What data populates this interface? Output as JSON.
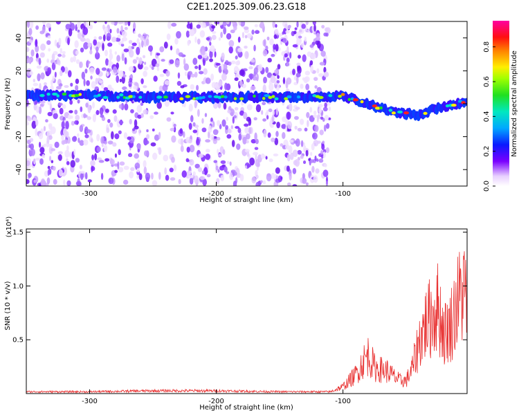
{
  "title": "C2E1.2025.309.06.23.G18",
  "chart_data": [
    {
      "type": "heatmap",
      "xlabel": "Height of straight line (km)",
      "ylabel": "Frequency (Hz)",
      "xlim": [
        -350,
        -2
      ],
      "ylim": [
        -50,
        50
      ],
      "x_ticks": [
        -300,
        -200,
        -100
      ],
      "y_ticks": [
        -40,
        -20,
        0,
        20,
        40
      ],
      "colorbar": {
        "label": "Normalized spectral amplitude",
        "range": [
          0,
          0.95
        ],
        "ticks": [
          "0.0",
          "0.2",
          "0.4",
          "0.6",
          "0.8"
        ],
        "colormap": "rainbow (white-purple-blue-cyan-green-yellow-red-magenta)"
      },
      "carrier_trace": {
        "x": [
          -350,
          -300,
          -250,
          -200,
          -150,
          -110,
          -100,
          -90,
          -80,
          -70,
          -60,
          -50,
          -40,
          -30,
          -20,
          -10,
          -2
        ],
        "y": [
          5,
          5,
          4,
          4,
          4,
          4,
          5,
          2,
          0,
          -3,
          -5,
          -6,
          -7,
          -4,
          -2,
          0,
          2
        ]
      },
      "noise_region_end_x": -110
    },
    {
      "type": "line",
      "xlabel": "Height of straight line (km)",
      "ylabel": "SNR (10 * v/v)",
      "scale_note": "(x10⁴)",
      "xlim": [
        -350,
        -2
      ],
      "ylim": [
        0,
        1.53
      ],
      "x_ticks": [
        -300,
        -200,
        -100
      ],
      "y_ticks": [
        "0.5",
        "1.0",
        "1.5"
      ],
      "series": [
        {
          "color": "#e83030",
          "x": [
            -350,
            -300,
            -250,
            -200,
            -150,
            -110,
            -100,
            -90,
            -85,
            -80,
            -75,
            -70,
            -65,
            -60,
            -55,
            -50,
            -45,
            -40,
            -35,
            -30,
            -25,
            -20,
            -15,
            -10,
            -5,
            -2
          ],
          "y": [
            0.02,
            0.02,
            0.03,
            0.03,
            0.02,
            0.02,
            0.08,
            0.22,
            0.35,
            0.45,
            0.3,
            0.28,
            0.26,
            0.2,
            0.15,
            0.15,
            0.3,
            0.6,
            0.8,
            0.9,
            1.0,
            0.7,
            0.8,
            1.05,
            1.2,
            1.1
          ]
        }
      ]
    }
  ]
}
